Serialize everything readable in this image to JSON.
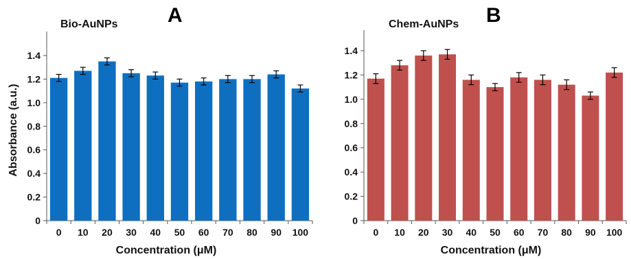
{
  "chart_data": [
    {
      "type": "bar",
      "panel_label": "A",
      "title": "Bio-AuNPs",
      "xlabel": "Concentration (μM)",
      "ylabel": "Absorbance (a.u.)",
      "categories": [
        "0",
        "10",
        "20",
        "30",
        "40",
        "50",
        "60",
        "70",
        "80",
        "90",
        "100"
      ],
      "values": [
        1.21,
        1.27,
        1.35,
        1.25,
        1.23,
        1.17,
        1.18,
        1.2,
        1.2,
        1.24,
        1.12
      ],
      "errors": [
        0.03,
        0.03,
        0.03,
        0.03,
        0.03,
        0.03,
        0.03,
        0.03,
        0.03,
        0.03,
        0.03
      ],
      "ylim": [
        0,
        1.4
      ],
      "yticks": [
        "0",
        "0.2",
        "0.4",
        "0.6",
        "0.8",
        "1.0",
        "1.2",
        "1.4"
      ],
      "color": "#0e6fc1",
      "grid": false
    },
    {
      "type": "bar",
      "panel_label": "B",
      "title": "Chem-AuNPs",
      "xlabel": "Concentration (μM)",
      "ylabel": "",
      "categories": [
        "0",
        "10",
        "20",
        "30",
        "40",
        "50",
        "60",
        "70",
        "80",
        "90",
        "100"
      ],
      "values": [
        1.17,
        1.28,
        1.36,
        1.37,
        1.16,
        1.1,
        1.18,
        1.16,
        1.12,
        1.03,
        1.22
      ],
      "errors": [
        0.04,
        0.04,
        0.04,
        0.04,
        0.04,
        0.03,
        0.04,
        0.04,
        0.04,
        0.03,
        0.04
      ],
      "ylim": [
        0,
        1.4
      ],
      "yticks": [
        "0",
        "0.2",
        "0.4",
        "0.6",
        "0.8",
        "1.0",
        "1.2",
        "1.4"
      ],
      "color": "#c0504d",
      "grid": false
    }
  ]
}
